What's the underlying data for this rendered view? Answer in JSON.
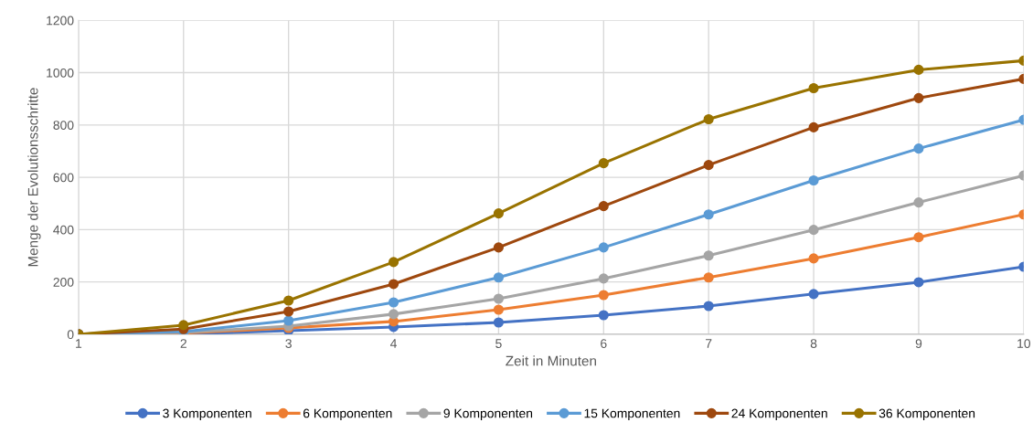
{
  "chart_data": {
    "type": "line",
    "xlabel": "Zeit in Minuten",
    "ylabel": "Menge der Evolutionsschritte",
    "x": [
      1,
      2,
      3,
      4,
      5,
      6,
      7,
      8,
      9,
      10
    ],
    "xlim": [
      1,
      10
    ],
    "xticks": [
      1,
      2,
      3,
      4,
      5,
      6,
      7,
      8,
      9,
      10
    ],
    "ylim": [
      0,
      1200
    ],
    "yticks": [
      0,
      200,
      400,
      600,
      800,
      1000,
      1200
    ],
    "grid": true,
    "legend": "bottom",
    "marker": "circle",
    "line_style": "solid",
    "series": [
      {
        "name": "3 Komponenten",
        "color": "#4472c4",
        "values": [
          0,
          1,
          14,
          28,
          45,
          73,
          108,
          154,
          199,
          258
        ]
      },
      {
        "name": "6 Komponenten",
        "color": "#ed7d31",
        "values": [
          0,
          4,
          24,
          49,
          94,
          150,
          217,
          290,
          371,
          458
        ]
      },
      {
        "name": "9 Komponenten",
        "color": "#a5a5a5",
        "values": [
          0,
          7,
          31,
          77,
          136,
          213,
          301,
          399,
          504,
          607
        ]
      },
      {
        "name": "15 Komponenten",
        "color": "#5b9bd5",
        "values": [
          0,
          10,
          52,
          122,
          217,
          332,
          458,
          588,
          710,
          820
        ]
      },
      {
        "name": "24 Komponenten",
        "color": "#9e480e",
        "values": [
          0,
          20,
          87,
          192,
          332,
          490,
          647,
          791,
          903,
          976
        ]
      },
      {
        "name": "36 Komponenten",
        "color": "#997300",
        "values": [
          0,
          35,
          129,
          276,
          462,
          654,
          822,
          941,
          1011,
          1046
        ]
      }
    ]
  }
}
